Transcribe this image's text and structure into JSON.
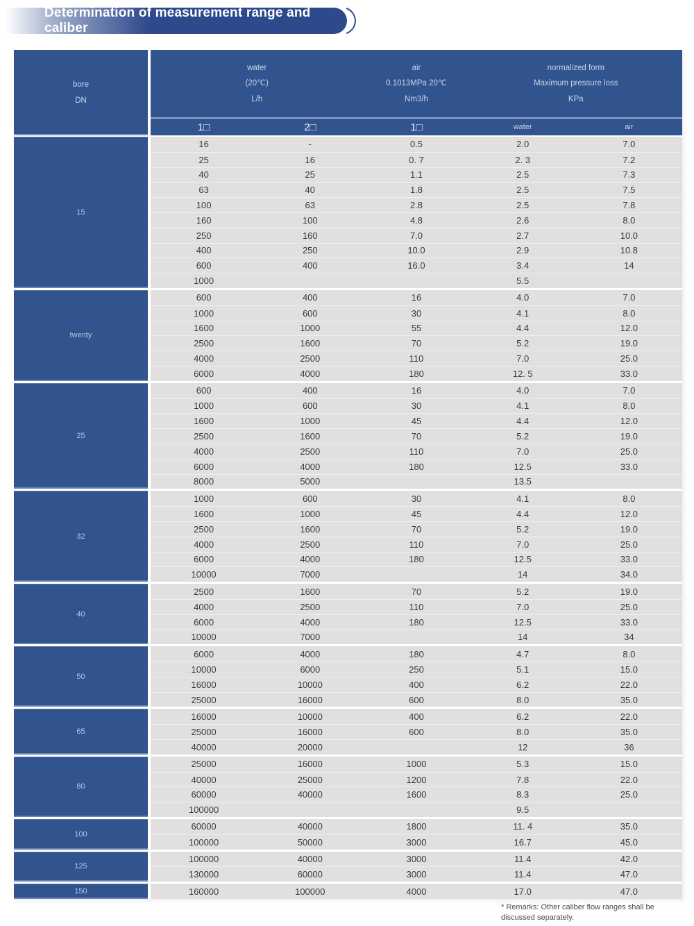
{
  "title": "Determination of measurement range and caliber",
  "table": {
    "header": {
      "bore_line1": "bore",
      "bore_line2": "DN",
      "water": {
        "l1": "water",
        "l2": "(20℃)",
        "l3": "L/h"
      },
      "air": {
        "l1": "air",
        "l2": "0.1013MPa 20℃",
        "l3": "Nm3/h"
      },
      "norm": {
        "l1": "normalized form",
        "l2": "Maximum pressure loss",
        "l3": "KPa"
      },
      "sub": {
        "c1": "1□",
        "c2": "2□",
        "c3": "1□",
        "c4": "water",
        "c5": "air"
      }
    },
    "sections": [
      {
        "dn": "15",
        "rows": [
          [
            "16",
            "-",
            "0.5",
            "2.0",
            "7.0"
          ],
          [
            "25",
            "16",
            "0. 7",
            "2. 3",
            "7.2"
          ],
          [
            "40",
            "25",
            "1.1",
            "2.5",
            "7.3"
          ],
          [
            "63",
            "40",
            "1.8",
            "2.5",
            "7.5"
          ],
          [
            "100",
            "63",
            "2.8",
            "2.5",
            "7.8"
          ],
          [
            "160",
            "100",
            "4.8",
            "2.6",
            "8.0"
          ],
          [
            "250",
            "160",
            "7.0",
            "2.7",
            "10.0"
          ],
          [
            "400",
            "250",
            "10.0",
            "2.9",
            "10.8"
          ],
          [
            "600",
            "400",
            "16.0",
            "3.4",
            "14"
          ],
          [
            "1000",
            "",
            "",
            "5.5",
            ""
          ]
        ]
      },
      {
        "dn": "twenty",
        "rows": [
          [
            "600",
            "400",
            "16",
            "4.0",
            "7.0"
          ],
          [
            "1000",
            "600",
            "30",
            "4.1",
            "8.0"
          ],
          [
            "1600",
            "1000",
            "55",
            "4.4",
            "12.0"
          ],
          [
            "2500",
            "1600",
            "70",
            "5.2",
            "19.0"
          ],
          [
            "4000",
            "2500",
            "110",
            "7.0",
            "25.0"
          ],
          [
            "6000",
            "4000",
            "180",
            "12. 5",
            "33.0"
          ]
        ]
      },
      {
        "dn": "25",
        "rows": [
          [
            "600",
            "400",
            "16",
            "4.0",
            "7.0"
          ],
          [
            "1000",
            "600",
            "30",
            "4.1",
            "8.0"
          ],
          [
            "1600",
            "1000",
            "45",
            "4.4",
            "12.0"
          ],
          [
            "2500",
            "1600",
            "70",
            "5.2",
            "19.0"
          ],
          [
            "4000",
            "2500",
            "110",
            "7.0",
            "25.0"
          ],
          [
            "6000",
            "4000",
            "180",
            "12.5",
            "33.0"
          ],
          [
            "8000",
            "5000",
            "",
            "13.5",
            ""
          ]
        ]
      },
      {
        "dn": "32",
        "rows": [
          [
            "1000",
            "600",
            "30",
            "4.1",
            "8.0"
          ],
          [
            "1600",
            "1000",
            "45",
            "4.4",
            "12.0"
          ],
          [
            "2500",
            "1600",
            "70",
            "5.2",
            "19.0"
          ],
          [
            "4000",
            "2500",
            "110",
            "7.0",
            "25.0"
          ],
          [
            "6000",
            "4000",
            "180",
            "12.5",
            "33.0"
          ],
          [
            "10000",
            "7000",
            "",
            "14",
            "34.0"
          ]
        ]
      },
      {
        "dn": "40",
        "rows": [
          [
            "2500",
            "1600",
            "70",
            "5.2",
            "19.0"
          ],
          [
            "4000",
            "2500",
            "110",
            "7.0",
            "25.0"
          ],
          [
            "6000",
            "4000",
            "180",
            "12.5",
            "33.0"
          ],
          [
            "10000",
            "7000",
            "",
            "14",
            "34"
          ]
        ]
      },
      {
        "dn": "50",
        "rows": [
          [
            "6000",
            "4000",
            "180",
            "4.7",
            "8.0"
          ],
          [
            "10000",
            "6000",
            "250",
            "5.1",
            "15.0"
          ],
          [
            "16000",
            "10000",
            "400",
            "6.2",
            "22.0"
          ],
          [
            "25000",
            "16000",
            "600",
            "8.0",
            "35.0"
          ]
        ]
      },
      {
        "dn": "65",
        "rows": [
          [
            "16000",
            "10000",
            "400",
            "6.2",
            "22.0"
          ],
          [
            "25000",
            "16000",
            "600",
            "8.0",
            "35.0"
          ],
          [
            "40000",
            "20000",
            "",
            "12",
            "36"
          ]
        ]
      },
      {
        "dn": "80",
        "rows": [
          [
            "25000",
            "16000",
            "1000",
            "5.3",
            "15.0"
          ],
          [
            "40000",
            "25000",
            "1200",
            "7.8",
            "22.0"
          ],
          [
            "60000",
            "40000",
            "1600",
            "8.3",
            "25.0"
          ],
          [
            "100000",
            "",
            "",
            "9.5",
            ""
          ]
        ]
      },
      {
        "dn": "100",
        "rows": [
          [
            "60000",
            "40000",
            "1800",
            "11. 4",
            "35.0"
          ],
          [
            "100000",
            "50000",
            "3000",
            "16.7",
            "45.0"
          ]
        ]
      },
      {
        "dn": "125",
        "rows": [
          [
            "100000",
            "40000",
            "3000",
            "11.4",
            "42.0"
          ],
          [
            "130000",
            "60000",
            "3000",
            "11.4",
            "47.0"
          ]
        ]
      },
      {
        "dn": "150",
        "rows": [
          [
            "160000",
            "100000",
            "4000",
            "17.0",
            "47.0"
          ]
        ]
      }
    ]
  },
  "remarks": "* Remarks: Other caliber flow ranges shall be discussed separately.",
  "colors": {
    "header_blue": "#31548f",
    "title_blue": "#2e4a8c",
    "body_gray": "#e2e0de",
    "text_dark": "#3a3a3a",
    "header_text": "#c9d4e9"
  }
}
